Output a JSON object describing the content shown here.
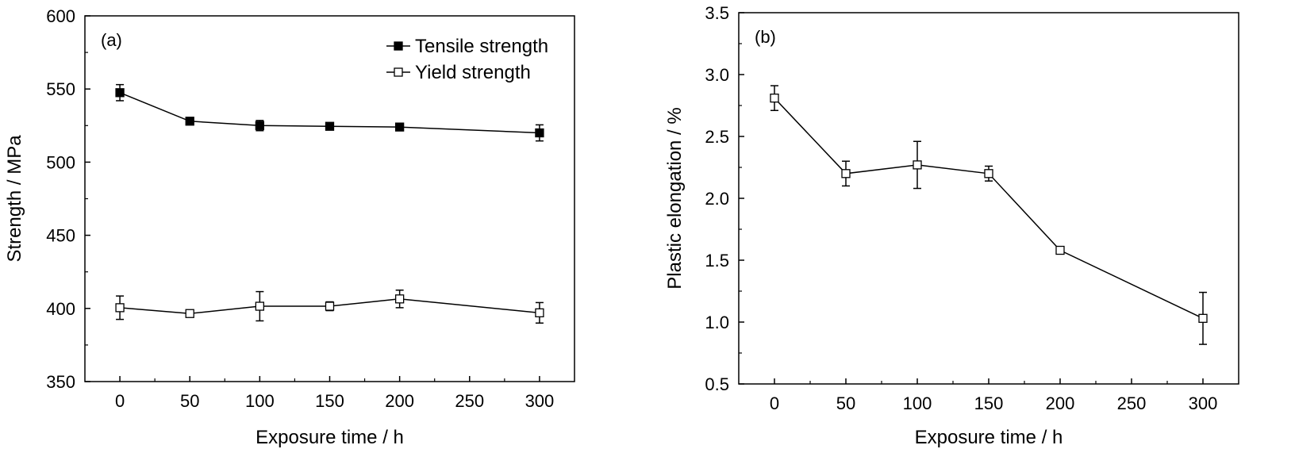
{
  "chart_data": [
    {
      "type": "line",
      "panel_label": "(a)",
      "xlabel": "Exposure time / h",
      "ylabel": "Strength / MPa",
      "xlim": [
        -25,
        325
      ],
      "ylim": [
        350,
        600
      ],
      "xticks": [
        0,
        50,
        100,
        150,
        200,
        250,
        300
      ],
      "yticks": [
        350,
        400,
        450,
        500,
        550,
        600
      ],
      "grid": false,
      "legend_position": "top-right",
      "series": [
        {
          "name": "Tensile strength",
          "marker": "filled-square",
          "color": "#000000",
          "x": [
            0,
            50,
            100,
            150,
            200,
            300
          ],
          "y": [
            547.5,
            528,
            525,
            524.5,
            524,
            520
          ],
          "err": [
            5.5,
            2,
            3.5,
            2,
            2,
            5.5
          ]
        },
        {
          "name": "Yield strength",
          "marker": "open-square",
          "color": "#000000",
          "x": [
            0,
            50,
            100,
            150,
            200,
            300
          ],
          "y": [
            400.5,
            396.5,
            401.5,
            401.5,
            406.5,
            397
          ],
          "err": [
            8,
            2,
            10,
            3,
            6,
            7
          ]
        }
      ]
    },
    {
      "type": "line",
      "panel_label": "(b)",
      "xlabel": "Exposure time / h",
      "ylabel": "Plastic elongation / %",
      "xlim": [
        -25,
        325
      ],
      "ylim": [
        0.5,
        3.5
      ],
      "xticks": [
        0,
        50,
        100,
        150,
        200,
        250,
        300
      ],
      "yticks": [
        0.5,
        1.0,
        1.5,
        2.0,
        2.5,
        3.0,
        3.5
      ],
      "ytick_labels": [
        "0.5",
        "1.0",
        "1.5",
        "2.0",
        "2.5",
        "3.0",
        "3.5"
      ],
      "grid": false,
      "series": [
        {
          "marker": "open-square",
          "color": "#000000",
          "x": [
            0,
            50,
            100,
            150,
            200,
            300
          ],
          "y": [
            2.81,
            2.2,
            2.27,
            2.2,
            1.58,
            1.03
          ],
          "err": [
            0.1,
            0.1,
            0.19,
            0.06,
            0.02,
            0.21
          ]
        }
      ]
    }
  ]
}
